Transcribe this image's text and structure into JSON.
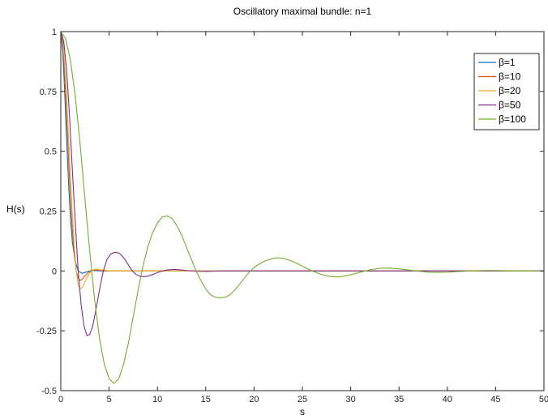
{
  "chart_data": {
    "type": "line",
    "title": "Oscillatory maximal bundle: n=1",
    "xlabel": "s",
    "ylabel": "H(s)",
    "xlim": [
      0,
      50
    ],
    "ylim": [
      -0.5,
      1
    ],
    "xticks": [
      0,
      5,
      10,
      15,
      20,
      25,
      30,
      35,
      40,
      45,
      50
    ],
    "yticks": [
      -0.5,
      -0.25,
      0,
      0.25,
      0.5,
      0.75,
      1
    ],
    "xtick_labels": [
      "0",
      "5",
      "10",
      "15",
      "20",
      "25",
      "30",
      "35",
      "40",
      "45",
      "50"
    ],
    "ytick_labels": [
      "-0.5",
      "-0.25",
      "0",
      "0.25",
      "0.5",
      "0.75",
      "1"
    ],
    "grid": false,
    "legend_position": "top-right",
    "series": [
      {
        "name": "β=1",
        "color": "#0072BD",
        "x": [
          0,
          0.2,
          0.4,
          0.6,
          0.8,
          1.0,
          1.2,
          1.5,
          1.8,
          2.2,
          2.6,
          3.0,
          3.5,
          4.0,
          5.0,
          6.0,
          8.0,
          10,
          50
        ],
        "y": [
          1,
          0.92,
          0.75,
          0.55,
          0.37,
          0.22,
          0.12,
          0.04,
          0.0,
          -0.01,
          -0.005,
          0.0,
          0.002,
          0.0,
          0.0,
          0.0,
          0.0,
          0.0,
          0.0
        ]
      },
      {
        "name": "β=10",
        "color": "#D95319",
        "x": [
          0,
          0.2,
          0.4,
          0.6,
          0.8,
          1.0,
          1.2,
          1.4,
          1.6,
          1.8,
          2.0,
          2.2,
          2.4,
          2.8,
          3.2,
          3.6,
          4.0,
          5.0,
          6.0,
          8.0,
          10,
          50
        ],
        "y": [
          1,
          0.95,
          0.82,
          0.65,
          0.47,
          0.3,
          0.17,
          0.07,
          0.0,
          -0.03,
          -0.04,
          -0.035,
          -0.025,
          -0.008,
          0.003,
          0.005,
          0.002,
          0.0,
          0.0,
          0.0,
          0.0,
          0.0
        ]
      },
      {
        "name": "β=20",
        "color": "#EDB120",
        "x": [
          0,
          0.2,
          0.4,
          0.6,
          0.8,
          1.0,
          1.2,
          1.4,
          1.6,
          1.8,
          2.0,
          2.2,
          2.4,
          2.7,
          3.0,
          3.4,
          3.8,
          4.2,
          5.0,
          6.0,
          8.0,
          10,
          50
        ],
        "y": [
          1,
          0.97,
          0.87,
          0.73,
          0.56,
          0.39,
          0.23,
          0.1,
          0.0,
          -0.06,
          -0.075,
          -0.07,
          -0.055,
          -0.03,
          -0.008,
          0.006,
          0.008,
          0.005,
          0.001,
          0.0,
          0.0,
          0.0,
          0.0
        ]
      },
      {
        "name": "β=50",
        "color": "#7E2F8E",
        "x": [
          0,
          0.3,
          0.6,
          0.9,
          1.2,
          1.5,
          1.8,
          2.1,
          2.4,
          2.7,
          3.0,
          3.3,
          3.6,
          4.0,
          4.4,
          4.8,
          5.2,
          5.6,
          6.0,
          6.3,
          6.6,
          7.0,
          7.4,
          7.8,
          8.2,
          8.6,
          9.0,
          9.5,
          10.0,
          10.5,
          11.0,
          11.5,
          12.0,
          12.5,
          13.0,
          14.0,
          15.0,
          16.0,
          17.0,
          18.0,
          20.0,
          50
        ],
        "y": [
          1,
          0.96,
          0.84,
          0.65,
          0.42,
          0.2,
          0.0,
          -0.14,
          -0.23,
          -0.27,
          -0.265,
          -0.23,
          -0.17,
          -0.08,
          0.0,
          0.05,
          0.072,
          0.078,
          0.075,
          0.065,
          0.05,
          0.025,
          0.0,
          -0.015,
          -0.022,
          -0.024,
          -0.022,
          -0.015,
          -0.007,
          0.0,
          0.004,
          0.006,
          0.006,
          0.004,
          0.002,
          -0.001,
          -0.002,
          -0.001,
          0.0,
          0.0,
          0.0,
          0.0
        ]
      },
      {
        "name": "β=100",
        "color": "#77AC30",
        "x": [
          0,
          0.5,
          1.0,
          1.5,
          2.0,
          2.5,
          3.0,
          3.5,
          4.0,
          4.5,
          5.0,
          5.5,
          6.0,
          6.5,
          7.0,
          7.5,
          8.0,
          8.5,
          9.0,
          9.5,
          10.0,
          10.5,
          11.0,
          11.5,
          12.0,
          12.5,
          13.0,
          13.5,
          14.0,
          14.5,
          15.0,
          15.5,
          16.0,
          16.5,
          17.0,
          17.5,
          18.0,
          18.5,
          19.0,
          19.5,
          20.0,
          21.0,
          22.0,
          22.5,
          23.0,
          24.0,
          25.0,
          26.0,
          27.0,
          28.0,
          28.5,
          29.0,
          30.0,
          31.0,
          32.0,
          33.0,
          34.0,
          35.0,
          36.0,
          37.0,
          38.0,
          39.0,
          40.0,
          41.0,
          42.0,
          43.0,
          44.0,
          45.0,
          46.0,
          47.0,
          48.0,
          49.0,
          50.0
        ],
        "y": [
          1,
          0.97,
          0.88,
          0.73,
          0.53,
          0.3,
          0.08,
          -0.12,
          -0.28,
          -0.39,
          -0.45,
          -0.47,
          -0.45,
          -0.39,
          -0.3,
          -0.19,
          -0.08,
          0.02,
          0.1,
          0.16,
          0.2,
          0.225,
          0.23,
          0.22,
          0.19,
          0.15,
          0.1,
          0.05,
          0.0,
          -0.04,
          -0.075,
          -0.1,
          -0.11,
          -0.113,
          -0.11,
          -0.1,
          -0.08,
          -0.055,
          -0.03,
          -0.005,
          0.015,
          0.04,
          0.053,
          0.055,
          0.053,
          0.04,
          0.02,
          0.0,
          -0.015,
          -0.024,
          -0.025,
          -0.024,
          -0.016,
          -0.005,
          0.005,
          0.011,
          0.012,
          0.009,
          0.004,
          -0.001,
          -0.005,
          -0.006,
          -0.005,
          -0.003,
          -0.001,
          0.001,
          0.002,
          0.002,
          0.001,
          0.0,
          0.0,
          -0.001,
          0.0
        ]
      }
    ]
  }
}
